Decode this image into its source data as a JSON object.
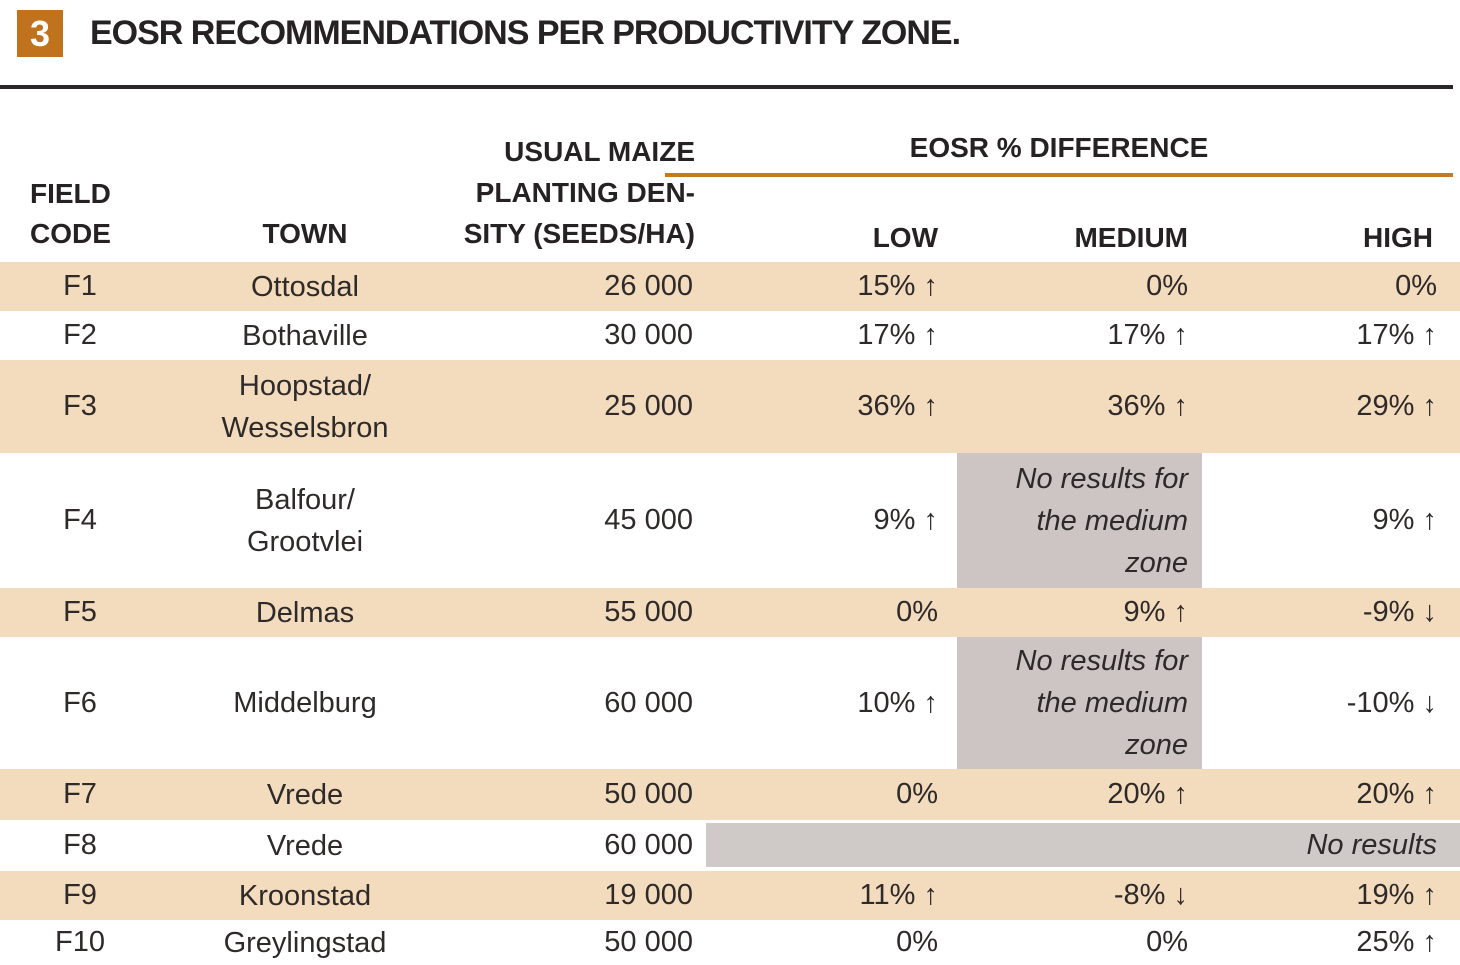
{
  "figure": {
    "number": "3",
    "title": "EOSR RECOMMENDATIONS PER PRODUCTIVITY ZONE."
  },
  "table": {
    "header": {
      "field_code_lines": [
        "FIELD",
        "CODE"
      ],
      "town": "TOWN",
      "density_lines": [
        "USUAL MAIZE",
        "PLANTING DEN-",
        "SITY (SEEDS/HA)"
      ],
      "eosr_group": "EOSR % DIFFERENCE",
      "zone_low": "LOW",
      "zone_medium": "MEDIUM",
      "zone_high": "HIGH"
    },
    "rows": [
      {
        "code": "F1",
        "town_lines": [
          "Ottosdal"
        ],
        "density": "26 000",
        "low": "15% ↑",
        "medium": "0%",
        "high": "0%"
      },
      {
        "code": "F2",
        "town_lines": [
          "Bothaville"
        ],
        "density": "30 000",
        "low": "17% ↑",
        "medium": "17% ↑",
        "high": "17% ↑"
      },
      {
        "code": "F3",
        "town_lines": [
          "Hoopstad/",
          "Wesselsbron"
        ],
        "density": "25 000",
        "low": "36% ↑",
        "medium": "36% ↑",
        "high": "29% ↑"
      },
      {
        "code": "F4",
        "town_lines": [
          "Balfour/",
          "Grootvlei"
        ],
        "density": "45 000",
        "low": "9% ↑",
        "medium_no_results_lines": [
          "No results for",
          "the medium",
          "zone"
        ],
        "high": "9% ↑"
      },
      {
        "code": "F5",
        "town_lines": [
          "Delmas"
        ],
        "density": "55 000",
        "low": "0%",
        "medium": "9% ↑",
        "high": "-9% ↓"
      },
      {
        "code": "F6",
        "town_lines": [
          "Middelburg"
        ],
        "density": "60 000",
        "low": "10% ↑",
        "medium_no_results_lines": [
          "No results for",
          "the medium",
          "zone"
        ],
        "high": "-10% ↓"
      },
      {
        "code": "F7",
        "town_lines": [
          "Vrede"
        ],
        "density": "50 000",
        "low": "0%",
        "medium": "20% ↑",
        "high": "20% ↑"
      },
      {
        "code": "F8",
        "town_lines": [
          "Vrede"
        ],
        "density": "60 000",
        "no_results": "No results"
      },
      {
        "code": "F9",
        "town_lines": [
          "Kroonstad"
        ],
        "density": "19 000",
        "low": "11% ↑",
        "medium": "-8% ↓",
        "high": "19% ↑"
      },
      {
        "code": "F10",
        "town_lines": [
          "Greylingstad"
        ],
        "density": "50 000",
        "low": "0%",
        "medium": "0%",
        "high": "25% ↑"
      }
    ]
  },
  "colors": {
    "accent_orange": "#c0731c",
    "orange_rule": "#c8791d",
    "row_highlight_tan": "#f3dbbd",
    "no_results_gray": "#ccc5c3",
    "dark_rule": "#2b2728",
    "text_dark": "#262223"
  }
}
